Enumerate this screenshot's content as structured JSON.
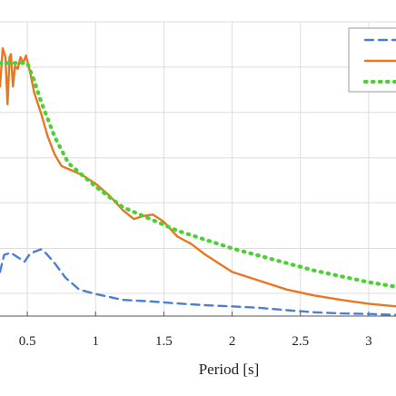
{
  "chart_data": {
    "type": "line",
    "title": "",
    "xlabel": "Period [s]",
    "ylabel": "",
    "xlim": [
      0.3,
      3.2
    ],
    "ylim": [
      0,
      1
    ],
    "grid": true,
    "legend_position": "top-right",
    "x_ticks": [
      0.5,
      1,
      1.5,
      2,
      2.5,
      3
    ],
    "x_tick_labels": [
      "0.5",
      "1",
      "1.5",
      "2",
      "2.5",
      "3"
    ],
    "y_gridlines": [
      0.077,
      0.23,
      0.385,
      0.538,
      0.692,
      0.846,
      1.0
    ],
    "colors": {
      "blue": "#4a7fd4",
      "orange": "#e87722",
      "green": "#4cd134",
      "grid": "#dddddd"
    },
    "series": [
      {
        "style": "dashed",
        "color": "#4a7fd4",
        "x": [
          0.3,
          0.33,
          0.38,
          0.43,
          0.48,
          0.52,
          0.56,
          0.6,
          0.64,
          0.7,
          0.78,
          0.88,
          1.0,
          1.2,
          1.4,
          1.6,
          1.8,
          2.0,
          2.2,
          2.4,
          2.6,
          2.8,
          3.0,
          3.2
        ],
        "y": [
          0.15,
          0.208,
          0.215,
          0.2,
          0.185,
          0.212,
          0.22,
          0.227,
          0.212,
          0.18,
          0.13,
          0.09,
          0.075,
          0.055,
          0.05,
          0.043,
          0.037,
          0.033,
          0.028,
          0.02,
          0.013,
          0.009,
          0.007,
          0.004
        ]
      },
      {
        "style": "solid",
        "color": "#e87722",
        "x": [
          0.3,
          0.32,
          0.34,
          0.355,
          0.37,
          0.38,
          0.395,
          0.41,
          0.43,
          0.45,
          0.47,
          0.49,
          0.52,
          0.55,
          0.6,
          0.65,
          0.7,
          0.75,
          0.8,
          0.9,
          1.0,
          1.1,
          1.2,
          1.28,
          1.35,
          1.42,
          1.5,
          1.6,
          1.7,
          1.8,
          1.9,
          2.0,
          2.2,
          2.4,
          2.6,
          2.8,
          3.0,
          3.2
        ],
        "y": [
          0.78,
          0.91,
          0.88,
          0.72,
          0.88,
          0.89,
          0.78,
          0.85,
          0.84,
          0.88,
          0.86,
          0.885,
          0.83,
          0.76,
          0.69,
          0.61,
          0.55,
          0.51,
          0.5,
          0.48,
          0.45,
          0.41,
          0.36,
          0.33,
          0.34,
          0.345,
          0.32,
          0.27,
          0.245,
          0.21,
          0.18,
          0.15,
          0.12,
          0.09,
          0.07,
          0.055,
          0.042,
          0.033
        ]
      },
      {
        "style": "dotted",
        "color": "#4cd134",
        "x": [
          0.3,
          0.35,
          0.4,
          0.45,
          0.5,
          0.55,
          0.6,
          0.7,
          0.8,
          0.9,
          1.0,
          1.1,
          1.2,
          1.3,
          1.4,
          1.5,
          1.6,
          1.7,
          1.8,
          1.9,
          2.0,
          2.2,
          2.4,
          2.6,
          2.8,
          3.0,
          3.2
        ],
        "y": [
          0.86,
          0.86,
          0.86,
          0.86,
          0.86,
          0.8,
          0.73,
          0.61,
          0.52,
          0.48,
          0.44,
          0.405,
          0.37,
          0.35,
          0.33,
          0.31,
          0.29,
          0.275,
          0.26,
          0.245,
          0.23,
          0.205,
          0.18,
          0.155,
          0.135,
          0.115,
          0.1
        ]
      }
    ]
  }
}
